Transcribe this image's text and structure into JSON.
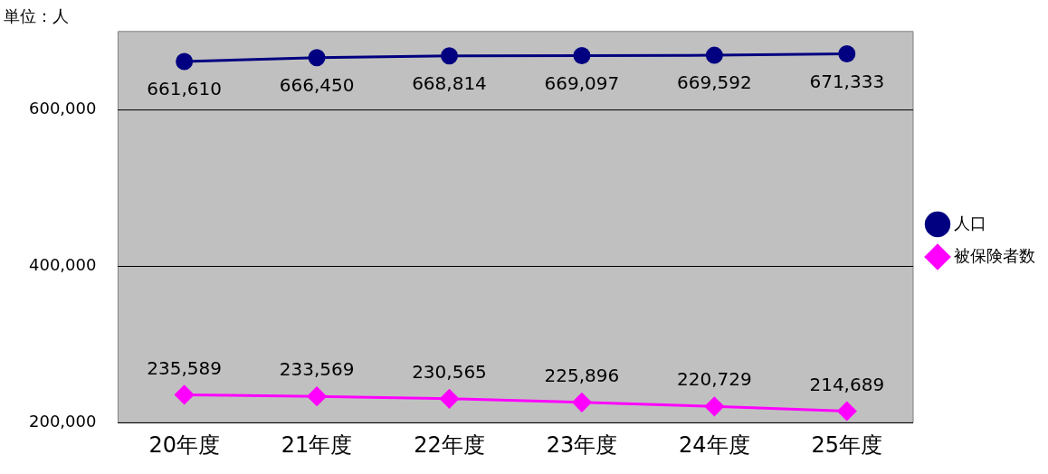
{
  "chart_data": {
    "type": "line",
    "ylabel": "単位：人",
    "categories": [
      "20年度",
      "21年度",
      "22年度",
      "23年度",
      "24年度",
      "25年度"
    ],
    "series": [
      {
        "name": "人口",
        "color": "#000080",
        "marker": "circle",
        "values": [
          661610,
          666450,
          668814,
          669097,
          669592,
          671333
        ],
        "value_labels": [
          "661,610",
          "666,450",
          "668,814",
          "669,097",
          "669,592",
          "671,333"
        ]
      },
      {
        "name": "被保険者数",
        "color": "#ff00ff",
        "marker": "diamond",
        "values": [
          235589,
          233569,
          230565,
          225896,
          220729,
          214689
        ],
        "value_labels": [
          "235,589",
          "233,569",
          "230,565",
          "225,896",
          "220,729",
          "214,689"
        ]
      }
    ],
    "ylim": [
      200000,
      700000
    ],
    "yticks": [
      {
        "value": 200000,
        "label": "200,000"
      },
      {
        "value": 400000,
        "label": "400,000"
      },
      {
        "value": 600000,
        "label": "600,000"
      }
    ],
    "grid": "y",
    "legend": "right"
  }
}
